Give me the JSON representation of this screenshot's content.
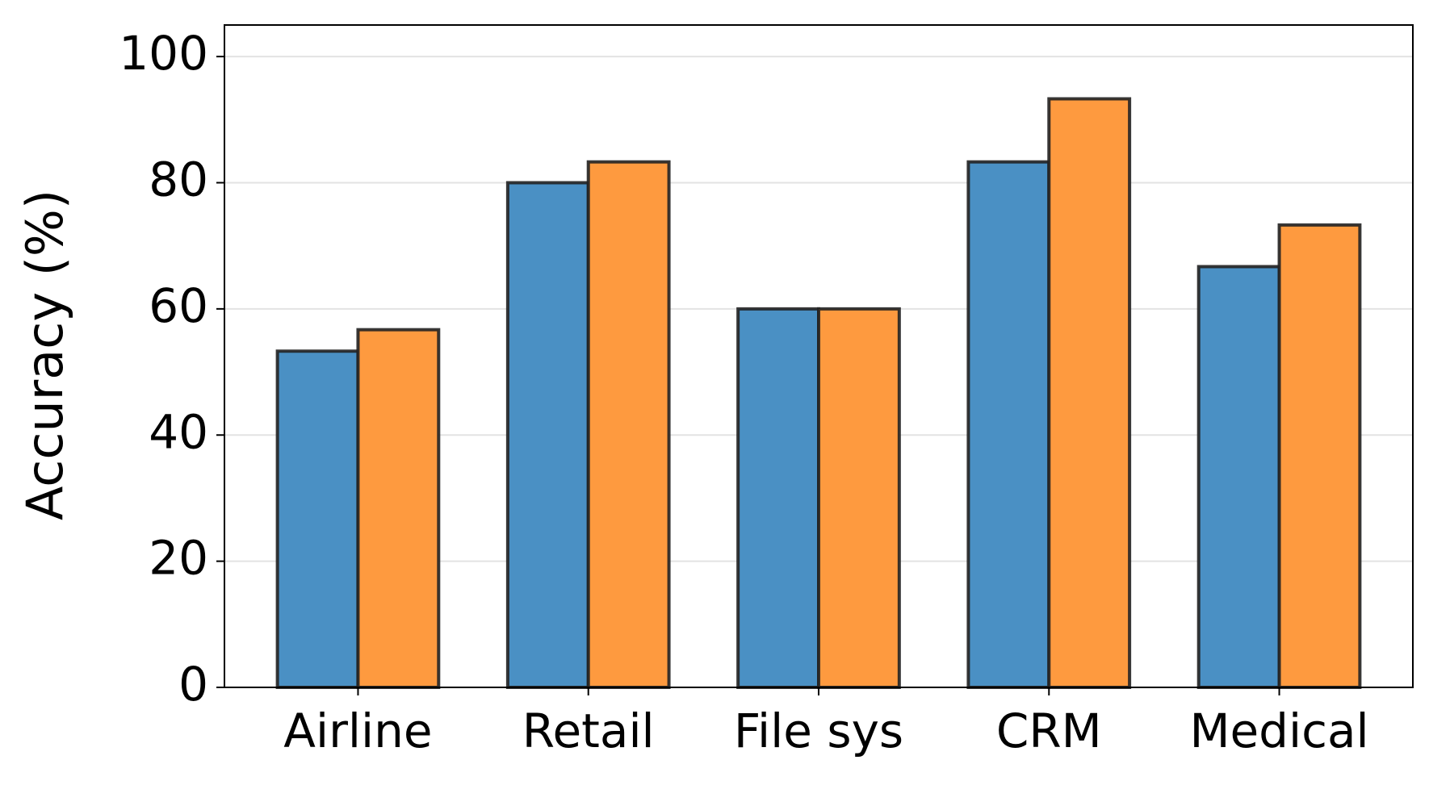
{
  "chart_data": {
    "type": "bar",
    "y_label": "Accuracy (%)",
    "categories": [
      "Airline",
      "Retail",
      "File sys",
      "CRM",
      "Medical"
    ],
    "series": [
      {
        "color": "#4a90c4",
        "values": [
          53.3,
          80,
          60,
          83.3,
          66.7
        ]
      },
      {
        "color": "#fe9a3f",
        "values": [
          56.7,
          83.3,
          60,
          93.3,
          73.3
        ]
      }
    ],
    "ylim": [
      0,
      105
    ],
    "yticks": [
      0,
      20,
      40,
      60,
      80,
      100
    ],
    "grid": true
  }
}
